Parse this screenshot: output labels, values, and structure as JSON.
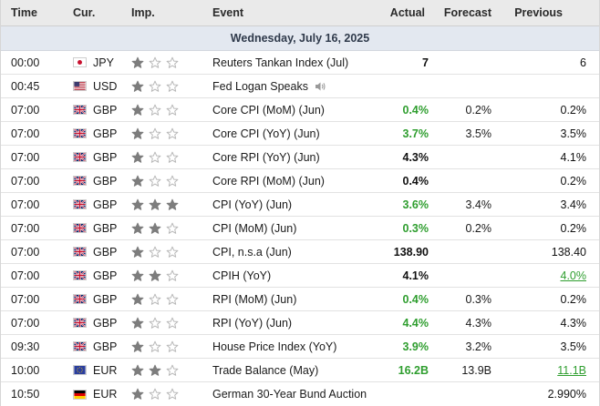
{
  "header": {
    "time": "Time",
    "currency": "Cur.",
    "importance": "Imp.",
    "event": "Event",
    "actual": "Actual",
    "forecast": "Forecast",
    "previous": "Previous"
  },
  "date_label": "Wednesday, July 16, 2025",
  "colors": {
    "green": "#2f9e2f",
    "star_on": "#7d7d7d",
    "star_off": "#b8b8b8",
    "date_band": "#e3e8f0"
  },
  "rows": [
    {
      "time": "00:00",
      "flag": "jp",
      "currency": "JPY",
      "stars": 1,
      "event": "Reuters Tankan Index (Jul)",
      "speaker": false,
      "actual": "7",
      "actual_color": "black",
      "forecast": "",
      "previous": "6",
      "previous_color": "black"
    },
    {
      "time": "00:45",
      "flag": "us",
      "currency": "USD",
      "stars": 1,
      "event": "Fed Logan Speaks",
      "speaker": true,
      "actual": "",
      "actual_color": "black",
      "forecast": "",
      "previous": "",
      "previous_color": "black"
    },
    {
      "time": "07:00",
      "flag": "gb",
      "currency": "GBP",
      "stars": 1,
      "event": "Core CPI (MoM) (Jun)",
      "speaker": false,
      "actual": "0.4%",
      "actual_color": "green",
      "forecast": "0.2%",
      "previous": "0.2%",
      "previous_color": "black"
    },
    {
      "time": "07:00",
      "flag": "gb",
      "currency": "GBP",
      "stars": 1,
      "event": "Core CPI (YoY) (Jun)",
      "speaker": false,
      "actual": "3.7%",
      "actual_color": "green",
      "forecast": "3.5%",
      "previous": "3.5%",
      "previous_color": "black"
    },
    {
      "time": "07:00",
      "flag": "gb",
      "currency": "GBP",
      "stars": 1,
      "event": "Core RPI (YoY) (Jun)",
      "speaker": false,
      "actual": "4.3%",
      "actual_color": "black",
      "forecast": "",
      "previous": "4.1%",
      "previous_color": "black"
    },
    {
      "time": "07:00",
      "flag": "gb",
      "currency": "GBP",
      "stars": 1,
      "event": "Core RPI (MoM) (Jun)",
      "speaker": false,
      "actual": "0.4%",
      "actual_color": "black",
      "forecast": "",
      "previous": "0.2%",
      "previous_color": "black"
    },
    {
      "time": "07:00",
      "flag": "gb",
      "currency": "GBP",
      "stars": 3,
      "event": "CPI (YoY) (Jun)",
      "speaker": false,
      "actual": "3.6%",
      "actual_color": "green",
      "forecast": "3.4%",
      "previous": "3.4%",
      "previous_color": "black"
    },
    {
      "time": "07:00",
      "flag": "gb",
      "currency": "GBP",
      "stars": 2,
      "event": "CPI (MoM) (Jun)",
      "speaker": false,
      "actual": "0.3%",
      "actual_color": "green",
      "forecast": "0.2%",
      "previous": "0.2%",
      "previous_color": "black"
    },
    {
      "time": "07:00",
      "flag": "gb",
      "currency": "GBP",
      "stars": 1,
      "event": "CPI, n.s.a (Jun)",
      "speaker": false,
      "actual": "138.90",
      "actual_color": "black",
      "forecast": "",
      "previous": "138.40",
      "previous_color": "black"
    },
    {
      "time": "07:00",
      "flag": "gb",
      "currency": "GBP",
      "stars": 2,
      "event": "CPIH (YoY)",
      "speaker": false,
      "actual": "4.1%",
      "actual_color": "black",
      "forecast": "",
      "previous": "4.0%",
      "previous_color": "green-u"
    },
    {
      "time": "07:00",
      "flag": "gb",
      "currency": "GBP",
      "stars": 1,
      "event": "RPI (MoM) (Jun)",
      "speaker": false,
      "actual": "0.4%",
      "actual_color": "green",
      "forecast": "0.3%",
      "previous": "0.2%",
      "previous_color": "black"
    },
    {
      "time": "07:00",
      "flag": "gb",
      "currency": "GBP",
      "stars": 1,
      "event": "RPI (YoY) (Jun)",
      "speaker": false,
      "actual": "4.4%",
      "actual_color": "green",
      "forecast": "4.3%",
      "previous": "4.3%",
      "previous_color": "black"
    },
    {
      "time": "09:30",
      "flag": "gb",
      "currency": "GBP",
      "stars": 1,
      "event": "House Price Index (YoY)",
      "speaker": false,
      "actual": "3.9%",
      "actual_color": "green",
      "forecast": "3.2%",
      "previous": "3.5%",
      "previous_color": "black"
    },
    {
      "time": "10:00",
      "flag": "eu",
      "currency": "EUR",
      "stars": 2,
      "event": "Trade Balance (May)",
      "speaker": false,
      "actual": "16.2B",
      "actual_color": "green",
      "forecast": "13.9B",
      "previous": "11.1B",
      "previous_color": "green-u"
    },
    {
      "time": "10:50",
      "flag": "de",
      "currency": "EUR",
      "stars": 1,
      "event": "German 30-Year Bund Auction",
      "speaker": false,
      "actual": "",
      "actual_color": "black",
      "forecast": "",
      "previous": "2.990%",
      "previous_color": "black"
    }
  ]
}
